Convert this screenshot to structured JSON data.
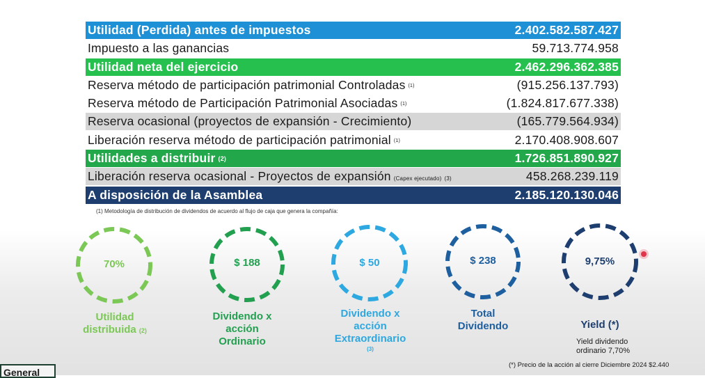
{
  "table": {
    "rows": [
      {
        "label": "Utilidad (Perdida) antes de impuestos",
        "value": "2.402.582.587.427"
      },
      {
        "label": "Impuesto a las ganancias",
        "value": "59.713.774.958"
      },
      {
        "label": "Utilidad neta del ejercicio",
        "value": "2.462.296.362.385"
      },
      {
        "label": "Reserva método de participación patrimonial Controladas",
        "note": "(1)",
        "value": "(915.256.137.793)"
      },
      {
        "label": "Reserva método de Participación Patrimonial Asociadas",
        "note": "(1)",
        "value": "(1.824.817.677.338)"
      },
      {
        "label": "Reserva ocasional (proyectos de expansión - Crecimiento)",
        "value": "(165.779.564.934)"
      },
      {
        "label": "Liberación reserva método de participación patrimonial",
        "note": "(1)",
        "value": "2.170.408.908.607"
      },
      {
        "label": "Utilidades a distribuir",
        "note": "(2)",
        "value": "1.726.851.890.927"
      },
      {
        "label": "Liberación reserva ocasional - Proyectos de expansión",
        "note": "(Capex ejecutado)",
        "note2": "(3)",
        "value": "458.268.239.119"
      },
      {
        "label": "A disposición de la Asamblea",
        "value": "2.185.120.130.046"
      }
    ]
  },
  "footnote": "(1) Metodología de distribución de dividendos de acuerdo al flujo de caja que genera la compañía:",
  "kpis": [
    {
      "value": "70%",
      "label_lines": [
        "Utilidad",
        "distribuida"
      ],
      "note": "(2)",
      "color": "#7cc856"
    },
    {
      "value": "$ 188",
      "label_lines": [
        "Dividendo x",
        "acción",
        "Ordinario"
      ],
      "color": "#22a050"
    },
    {
      "value": "$ 50",
      "label_lines": [
        "Dividendo x",
        "acción",
        "Extraordinario"
      ],
      "note": "(3)",
      "color": "#2ea8e0"
    },
    {
      "value": "$ 238",
      "label_lines": [
        "Total",
        "Dividendo"
      ],
      "color": "#1e5fa0"
    },
    {
      "value": "9,75%",
      "label_lines": [
        "Yield (*)"
      ],
      "color": "#1d3e6e"
    }
  ],
  "yield_note": [
    "Yield  dividendo",
    "ordinario 7,70%"
  ],
  "price_note": "(*) Precio de la acción al cierre Diciembre 2024 $2.440",
  "tab_label": "General",
  "colors": {
    "blue": "#1e90d6",
    "green_bright": "#25c04e",
    "green_dark": "#22a84a",
    "navy": "#1d3e6e",
    "grey": "#d6d6d6",
    "pointer": "#e0364b"
  }
}
